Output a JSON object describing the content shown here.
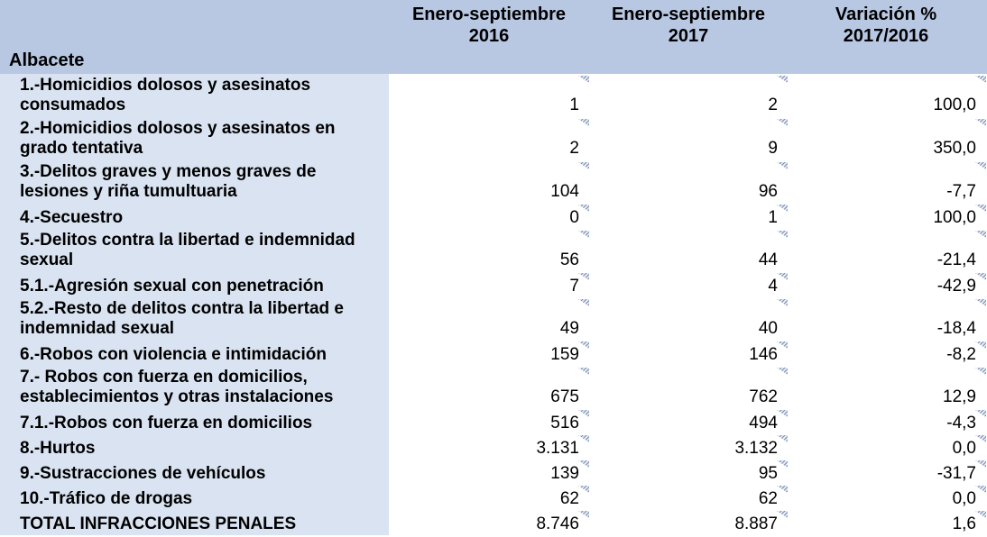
{
  "header": {
    "col1": [
      "Enero-septiembre",
      "2016"
    ],
    "col2": [
      "Enero-septiembre",
      "2017"
    ],
    "col3": [
      "Variación %",
      "2017/2016"
    ],
    "region": "Albacete"
  },
  "rows": [
    {
      "label": "1.-Homicidios dolosos y asesinatos consumados",
      "v2016": "1",
      "v2017": "2",
      "variation": "100,0"
    },
    {
      "label": "2.-Homicidios dolosos y asesinatos en grado tentativa",
      "v2016": "2",
      "v2017": "9",
      "variation": "350,0"
    },
    {
      "label": "3.-Delitos graves y menos graves de lesiones y riña tumultuaria",
      "v2016": "104",
      "v2017": "96",
      "variation": "-7,7"
    },
    {
      "label": "4.-Secuestro",
      "v2016": "0",
      "v2017": "1",
      "variation": "100,0"
    },
    {
      "label": "5.-Delitos contra la libertad e indemnidad sexual",
      "v2016": "56",
      "v2017": "44",
      "variation": "-21,4"
    },
    {
      "label": "5.1.-Agresión sexual con penetración",
      "v2016": "7",
      "v2017": "4",
      "variation": "-42,9"
    },
    {
      "label": "5.2.-Resto de delitos contra la libertad e indemnidad sexual",
      "v2016": "49",
      "v2017": "40",
      "variation": "-18,4"
    },
    {
      "label": "6.-Robos con violencia e intimidación",
      "v2016": "159",
      "v2017": "146",
      "variation": "-8,2"
    },
    {
      "label": "7.- Robos con fuerza en domicilios, establecimientos y otras instalaciones",
      "v2016": "675",
      "v2017": "762",
      "variation": "12,9"
    },
    {
      "label": "7.1.-Robos con fuerza en domicilios",
      "v2016": "516",
      "v2017": "494",
      "variation": "-4,3"
    },
    {
      "label": "8.-Hurtos",
      "v2016": "3.131",
      "v2017": "3.132",
      "variation": "0,0"
    },
    {
      "label": "9.-Sustracciones de vehículos",
      "v2016": "139",
      "v2017": "95",
      "variation": "-31,7"
    },
    {
      "label": "10.-Tráfico de drogas",
      "v2016": "62",
      "v2017": "62",
      "variation": "0,0"
    },
    {
      "label": "TOTAL INFRACCIONES PENALES",
      "v2016": "8.746",
      "v2017": "8.887",
      "variation": "1,6"
    }
  ],
  "colors": {
    "header_bg": "#b8c8e3",
    "label_col_bg": "#d9e3f1",
    "marker": "#7d8fb3"
  }
}
